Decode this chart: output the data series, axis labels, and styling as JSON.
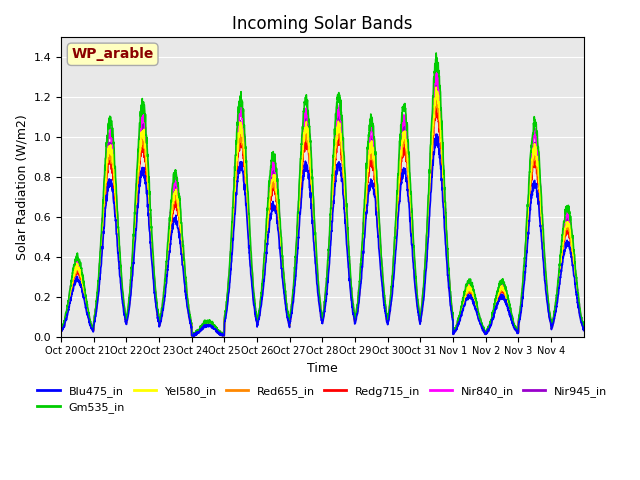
{
  "title": "Incoming Solar Bands",
  "xlabel": "Time",
  "ylabel": "Solar Radiation (W/m2)",
  "annotation": "WP_arable",
  "annotation_color": "#8B0000",
  "annotation_bg": "#FFFFC0",
  "ylim": [
    0,
    1.5
  ],
  "yticks": [
    0.0,
    0.2,
    0.4,
    0.6,
    0.8,
    1.0,
    1.2,
    1.4
  ],
  "bg_color": "#E8E8E8",
  "series": [
    {
      "label": "Blu475_in",
      "color": "#0000FF",
      "lw": 1.2
    },
    {
      "label": "Gm535_in",
      "color": "#00CC00",
      "lw": 1.2
    },
    {
      "label": "Yel580_in",
      "color": "#FFFF00",
      "lw": 1.2
    },
    {
      "label": "Red655_in",
      "color": "#FF8800",
      "lw": 1.2
    },
    {
      "label": "Redg715_in",
      "color": "#FF0000",
      "lw": 1.2
    },
    {
      "label": "Nir840_in",
      "color": "#FF00FF",
      "lw": 1.2
    },
    {
      "label": "Nir945_in",
      "color": "#9900CC",
      "lw": 1.2
    }
  ],
  "x_tick_labels": [
    "Oct 20",
    "Oct 21",
    "Oct 22",
    "Oct 23",
    "Oct 24",
    "Oct 25",
    "Oct 26",
    "Oct 27",
    "Oct 28",
    "Oct 29",
    "Oct 30",
    "Oct 31",
    "Nov 1",
    "Nov 2",
    "Nov 3",
    "Nov 4"
  ],
  "days": 15,
  "pts_per_day": 144,
  "day_peaks": [
    0.4,
    1.08,
    1.16,
    0.82,
    0.08,
    1.19,
    0.91,
    1.19,
    1.2,
    1.08,
    1.15,
    1.38,
    0.28,
    0.28,
    1.07,
    0.65
  ],
  "scale_factors": {
    "Blu475_in": 0.72,
    "Gm535_in": 1.0,
    "Yel580_in": 0.88,
    "Red655_in": 0.85,
    "Redg715_in": 0.82,
    "Nir840_in": 0.95,
    "Nir945_in": 0.9
  }
}
